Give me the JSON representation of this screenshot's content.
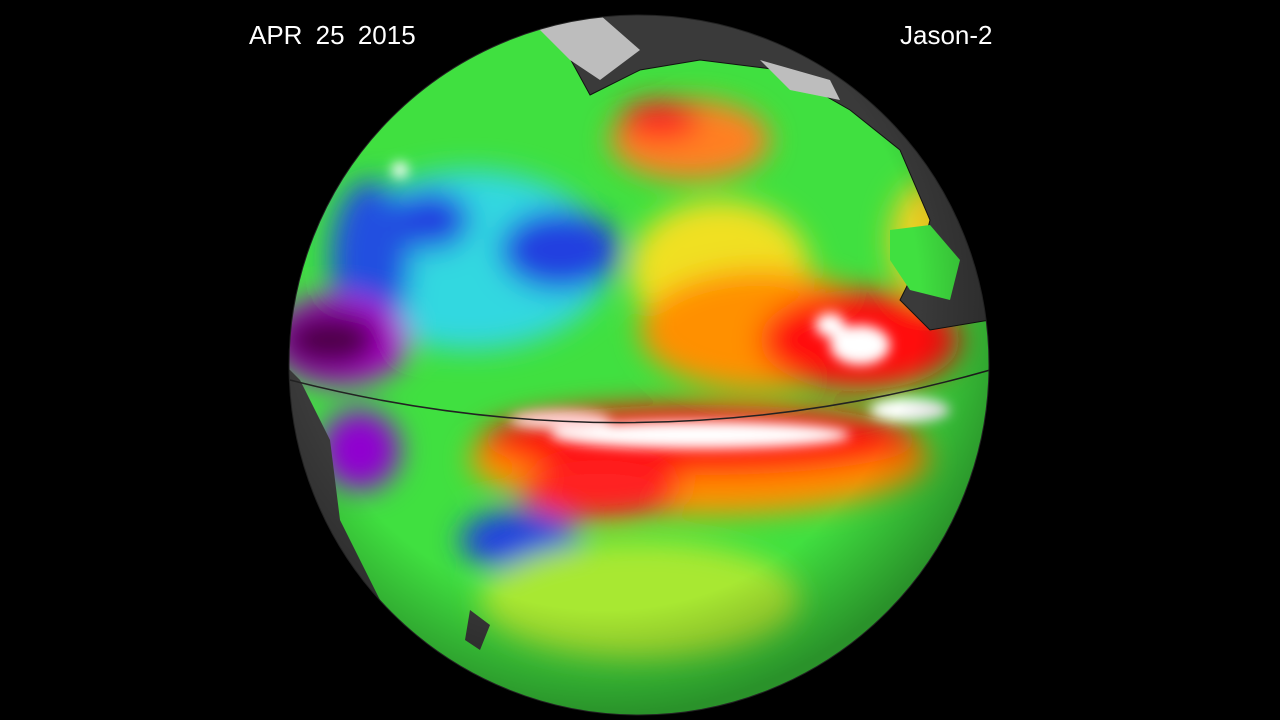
{
  "date_label": "APR 25  2015",
  "satellite_label": "Jason-2",
  "colors": {
    "background": "#000000",
    "land": "#3a3a3a",
    "ice": "#bdbdbd",
    "anomaly_scale": [
      "#5a0050",
      "#a000c8",
      "#2030e0",
      "#00d8e8",
      "#30e050",
      "#f0e020",
      "#ff8000",
      "#ff1010",
      "#ffffff"
    ]
  }
}
